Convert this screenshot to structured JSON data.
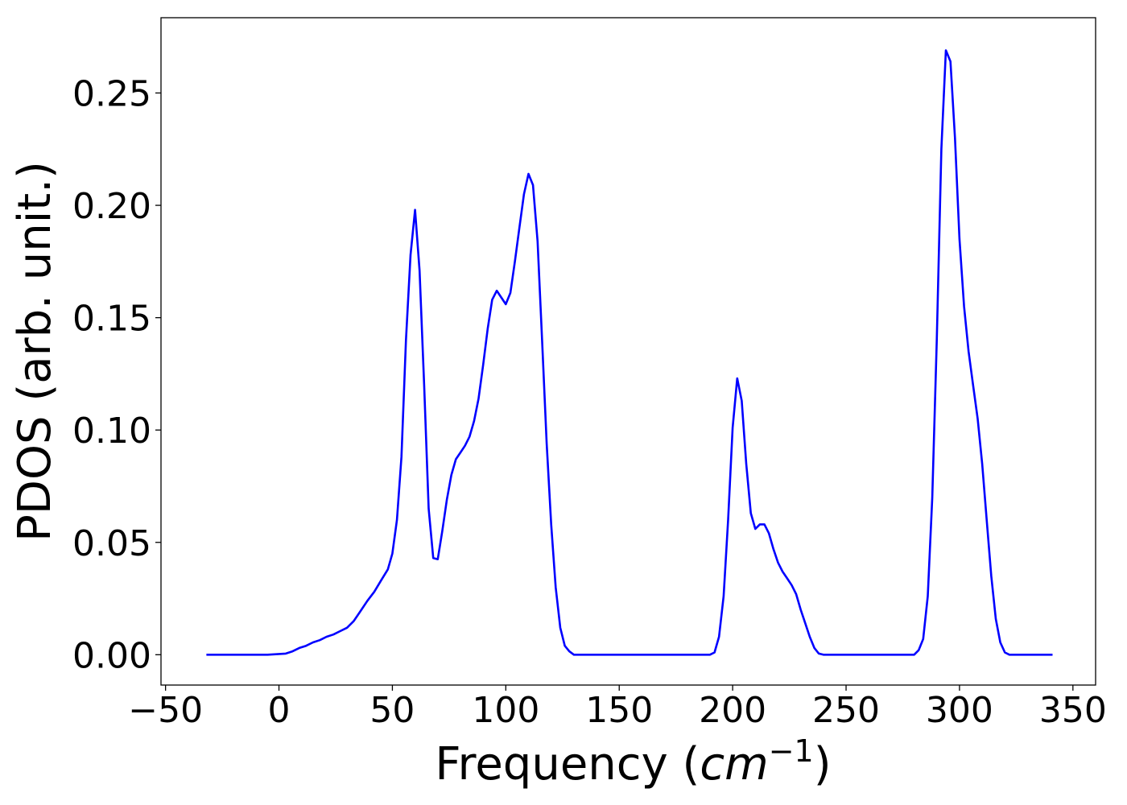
{
  "chart_data": {
    "type": "line",
    "title": "",
    "xlabel": "Frequency (",
    "xlabel_math": "cm",
    "xlabel_sup": "−1",
    "xlabel_close": ")",
    "ylabel": "PDOS (arb. unit.)",
    "xlim": [
      -52,
      360
    ],
    "ylim": [
      -0.0135,
      0.2835
    ],
    "xticks": [
      -50,
      0,
      50,
      100,
      150,
      200,
      250,
      300,
      350
    ],
    "xtick_labels": [
      "−50",
      "0",
      "50",
      "100",
      "150",
      "200",
      "250",
      "300",
      "350"
    ],
    "yticks": [
      0.0,
      0.05,
      0.1,
      0.15,
      0.2,
      0.25
    ],
    "ytick_labels": [
      "0.00",
      "0.05",
      "0.10",
      "0.15",
      "0.20",
      "0.25"
    ],
    "grid": false,
    "line_color": "#0000ff",
    "series": [
      {
        "x": [
          -32,
          -5,
          3,
          6,
          9,
          12,
          15,
          18,
          21,
          24,
          27,
          30,
          33,
          36,
          39,
          42,
          45,
          48,
          50,
          52,
          54,
          56,
          58,
          60,
          62,
          64,
          66,
          68,
          70,
          72,
          74,
          76,
          78,
          80,
          82,
          84,
          86,
          88,
          90,
          92,
          94,
          96,
          98,
          100,
          102,
          104,
          106,
          108,
          110,
          112,
          114,
          116,
          118,
          120,
          122,
          124,
          126,
          128,
          130,
          190,
          192,
          194,
          196,
          198,
          200,
          202,
          204,
          206,
          208,
          210,
          212,
          214,
          216,
          218,
          220,
          222,
          224,
          226,
          228,
          230,
          232,
          234,
          236,
          238,
          240,
          280,
          282,
          284,
          286,
          288,
          290,
          292,
          294,
          296,
          298,
          300,
          302,
          304,
          306,
          308,
          310,
          312,
          314,
          316,
          318,
          320,
          322,
          341
        ],
        "values": [
          0.0,
          0.0,
          0.0005,
          0.0015,
          0.003,
          0.004,
          0.0055,
          0.0065,
          0.008,
          0.009,
          0.0105,
          0.012,
          0.015,
          0.0195,
          0.024,
          0.028,
          0.033,
          0.038,
          0.045,
          0.06,
          0.088,
          0.14,
          0.178,
          0.198,
          0.171,
          0.12,
          0.065,
          0.043,
          0.0425,
          0.055,
          0.069,
          0.08,
          0.087,
          0.09,
          0.093,
          0.097,
          0.104,
          0.114,
          0.129,
          0.145,
          0.158,
          0.162,
          0.159,
          0.156,
          0.161,
          0.175,
          0.19,
          0.205,
          0.214,
          0.209,
          0.184,
          0.14,
          0.094,
          0.058,
          0.03,
          0.012,
          0.004,
          0.0015,
          0.0,
          0.0,
          0.001,
          0.008,
          0.026,
          0.06,
          0.101,
          0.123,
          0.113,
          0.085,
          0.063,
          0.056,
          0.058,
          0.058,
          0.054,
          0.047,
          0.041,
          0.037,
          0.034,
          0.031,
          0.027,
          0.02,
          0.014,
          0.008,
          0.003,
          0.0005,
          0.0,
          0.0,
          0.002,
          0.007,
          0.026,
          0.07,
          0.14,
          0.225,
          0.269,
          0.264,
          0.23,
          0.185,
          0.155,
          0.135,
          0.12,
          0.105,
          0.085,
          0.06,
          0.035,
          0.016,
          0.0055,
          0.001,
          0.0,
          0.0
        ]
      }
    ]
  }
}
